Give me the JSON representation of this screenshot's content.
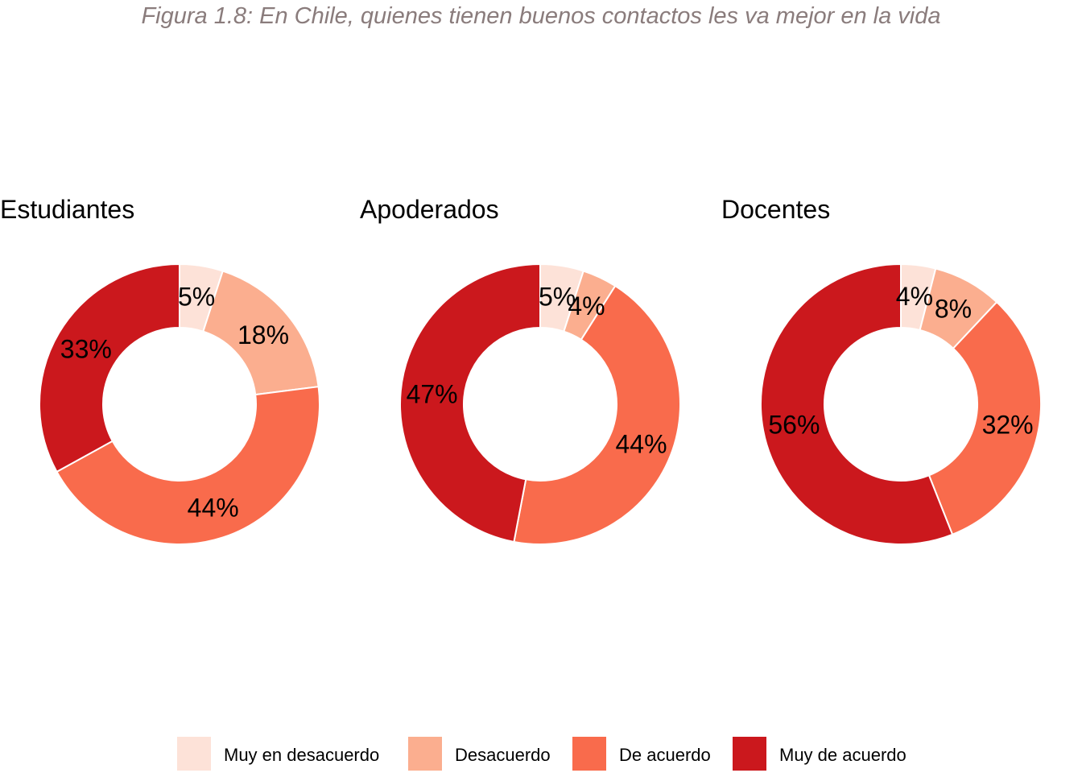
{
  "title": "Figura 1.8: En Chile, quienes tienen buenos contactos les va mejor en la vida",
  "legend": [
    {
      "label": "Muy en desacuerdo",
      "color": "#fde2d8"
    },
    {
      "label": "Desacuerdo",
      "color": "#fbae8f"
    },
    {
      "label": "De acuerdo",
      "color": "#f96b4c"
    },
    {
      "label": "Muy de acuerdo",
      "color": "#cb181d"
    }
  ],
  "chart_data": {
    "type": "pie",
    "variant": "donut",
    "title": "Figura 1.8: En Chile, quienes tienen buenos contactos les va mejor en la vida",
    "categories": [
      "Muy en desacuerdo",
      "Desacuerdo",
      "De acuerdo",
      "Muy de acuerdo"
    ],
    "legend_position": "bottom",
    "panels": [
      {
        "name": "Estudiantes",
        "values": [
          5,
          18,
          44,
          33
        ],
        "labels": [
          "5%",
          "18%",
          "44%",
          "33%"
        ]
      },
      {
        "name": "Apoderados",
        "values": [
          5,
          4,
          44,
          47
        ],
        "labels": [
          "5%",
          "4%",
          "44%",
          "47%"
        ]
      },
      {
        "name": "Docentes",
        "values": [
          4,
          8,
          32,
          56
        ],
        "labels": [
          "4%",
          "8%",
          "32%",
          "56%"
        ]
      }
    ]
  }
}
